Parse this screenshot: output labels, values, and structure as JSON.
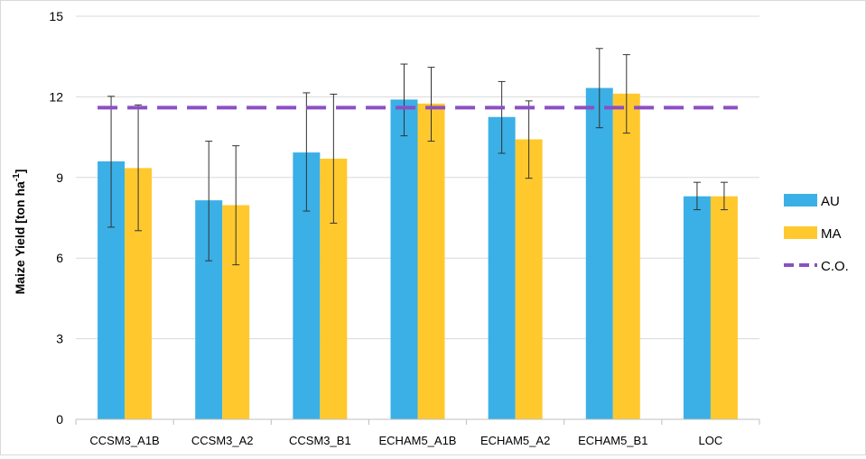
{
  "chart_data": {
    "type": "bar",
    "ylabel": "Maize Yield [ton ha",
    "ylabel_sup": "-1",
    "ylabel_close": "]",
    "xlabel": "",
    "ylim": [
      0,
      15
    ],
    "yticks": [
      0,
      3,
      6,
      9,
      12,
      15
    ],
    "grid": "horizontal",
    "legend_position": "right",
    "categories": [
      "CCSM3_A1B",
      "CCSM3_A2",
      "CCSM3_B1",
      "ECHAM5_A1B",
      "ECHAM5_A2",
      "ECHAM5_B1",
      "LOC"
    ],
    "series": [
      {
        "name": "AU",
        "color": "#3ab0e6",
        "values": [
          9.6,
          8.15,
          9.93,
          11.9,
          11.25,
          12.33,
          8.3
        ],
        "error_low": [
          7.15,
          5.9,
          7.75,
          10.55,
          9.9,
          10.85,
          7.8
        ],
        "error_high": [
          12.02,
          10.35,
          12.15,
          13.22,
          12.57,
          13.8,
          8.82
        ]
      },
      {
        "name": "MA",
        "color": "#ffc92e",
        "values": [
          9.35,
          7.97,
          9.7,
          11.75,
          10.42,
          12.12,
          8.3
        ],
        "error_low": [
          7.02,
          5.75,
          7.3,
          10.35,
          8.97,
          10.65,
          7.8
        ],
        "error_high": [
          11.7,
          10.18,
          12.1,
          13.1,
          11.85,
          13.57,
          8.82
        ]
      }
    ],
    "reference_line": {
      "name": "C.O.",
      "value": 11.6,
      "color": "#8b4fc4",
      "style": "dashed"
    }
  }
}
